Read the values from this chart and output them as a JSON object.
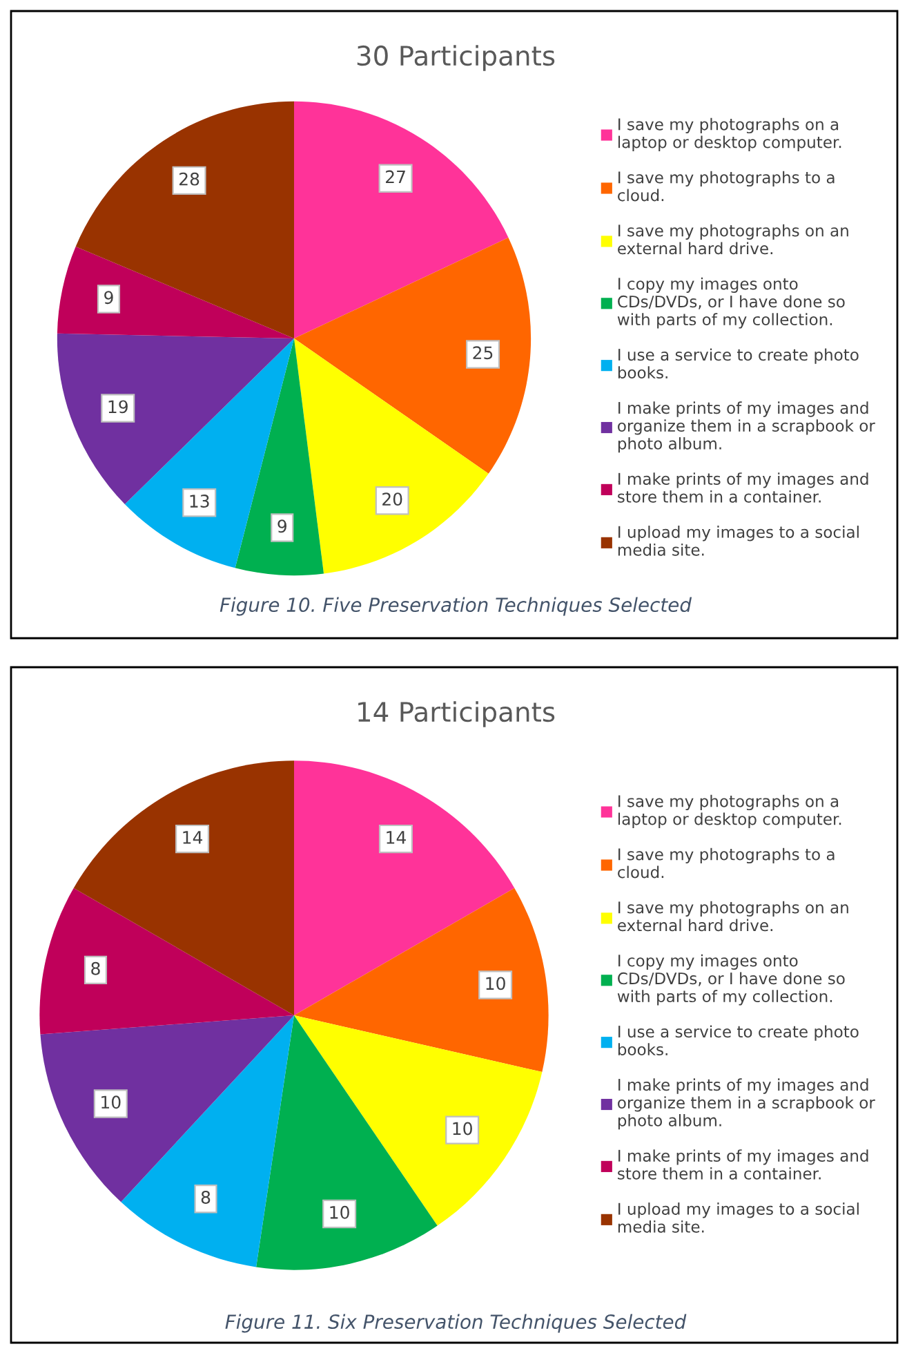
{
  "chart_data": [
    {
      "type": "pie",
      "title": "30 Participants",
      "categories": [
        "I save my photographs on a laptop or desktop computer.",
        "I save my photographs to a cloud.",
        "I save my photographs on an external hard drive.",
        "I copy my images onto CDs/DVDs, or I have done so with parts of my collection.",
        "I use a service to create photo books.",
        "I make prints of my images and organize them in a scrapbook or photo album.",
        "I make prints of my images and store them in a container.",
        "I upload my images to a social media site."
      ],
      "values": [
        27,
        25,
        20,
        9,
        13,
        19,
        9,
        28
      ],
      "colors": [
        "#ff3399",
        "#ff6600",
        "#ffff00",
        "#00b050",
        "#00b0f0",
        "#7030a0",
        "#c0005a",
        "#993300"
      ],
      "data_labels": true,
      "legend": "right",
      "annotations": [
        "Figure 10. Five Preservation Techniques Selected"
      ]
    },
    {
      "type": "pie",
      "title": "14 Participants",
      "categories": [
        "I save my photographs on a laptop or desktop computer.",
        "I save my photographs to a cloud.",
        "I save my photographs on an external hard drive.",
        "I copy my images onto CDs/DVDs, or I have done so with parts of my collection.",
        "I use a service to create photo books.",
        "I make prints of my images and organize them in a scrapbook or photo album.",
        "I make prints of my images and store them in a container.",
        "I upload my images to a social media site."
      ],
      "values": [
        14,
        10,
        10,
        10,
        8,
        10,
        8,
        14
      ],
      "colors": [
        "#ff3399",
        "#ff6600",
        "#ffff00",
        "#00b050",
        "#00b0f0",
        "#7030a0",
        "#c0005a",
        "#993300"
      ],
      "data_labels": true,
      "legend": "right",
      "annotations": [
        "Figure 11. Six Preservation Techniques Selected"
      ]
    }
  ]
}
